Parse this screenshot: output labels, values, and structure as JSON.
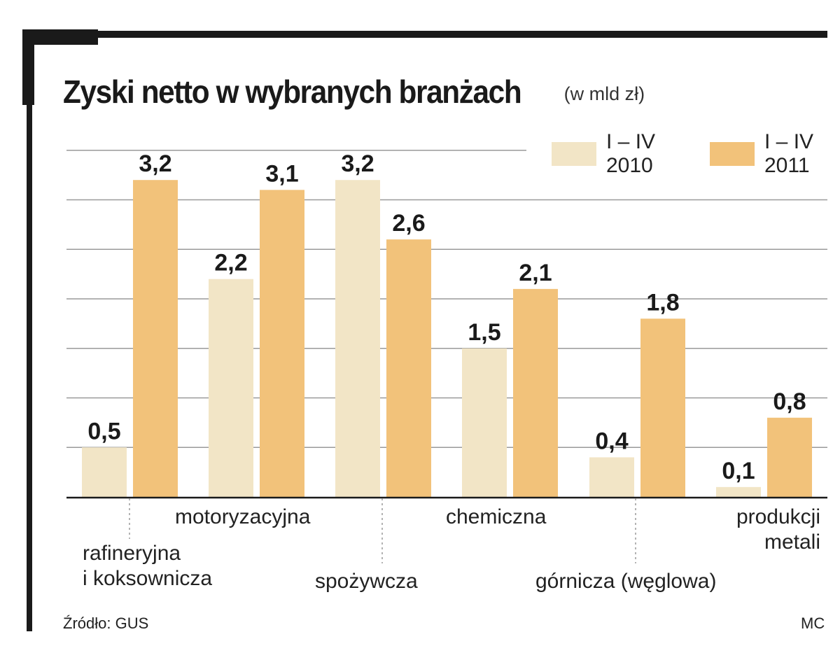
{
  "title": "Zyski netto w wybranych branżach",
  "unit": "(w mld zł)",
  "source": "Źródło: GUS",
  "credit": "MC",
  "colors": {
    "series_2010": "#f2e5c6",
    "series_2011": "#f2c27a",
    "grid": "#9a9a9a",
    "frame": "#1a1a1a"
  },
  "chart_data": {
    "type": "bar",
    "title": "Zyski netto w wybranych branżach",
    "ylabel": "",
    "xlabel": "",
    "ylim": [
      0,
      3.5
    ],
    "grid": true,
    "legend_position": "top-right",
    "categories": [
      "rafineryjna\ni koksownicza",
      "motoryzacyjna",
      "spożywcza",
      "chemiczna",
      "górnicza (węglowa)",
      "produkcji\nmetali"
    ],
    "series": [
      {
        "name": "I – IV\n2010",
        "values": [
          0.5,
          2.2,
          3.2,
          1.5,
          0.4,
          0.1
        ],
        "labels": [
          "0,5",
          "2,2",
          "3,2",
          "1,5",
          "0,4",
          "0,1"
        ]
      },
      {
        "name": "I – IV\n2011",
        "values": [
          3.2,
          3.1,
          2.6,
          2.1,
          1.8,
          0.8
        ],
        "labels": [
          "3,2",
          "3,1",
          "2,6",
          "2,1",
          "1,8",
          "0,8"
        ]
      }
    ]
  }
}
